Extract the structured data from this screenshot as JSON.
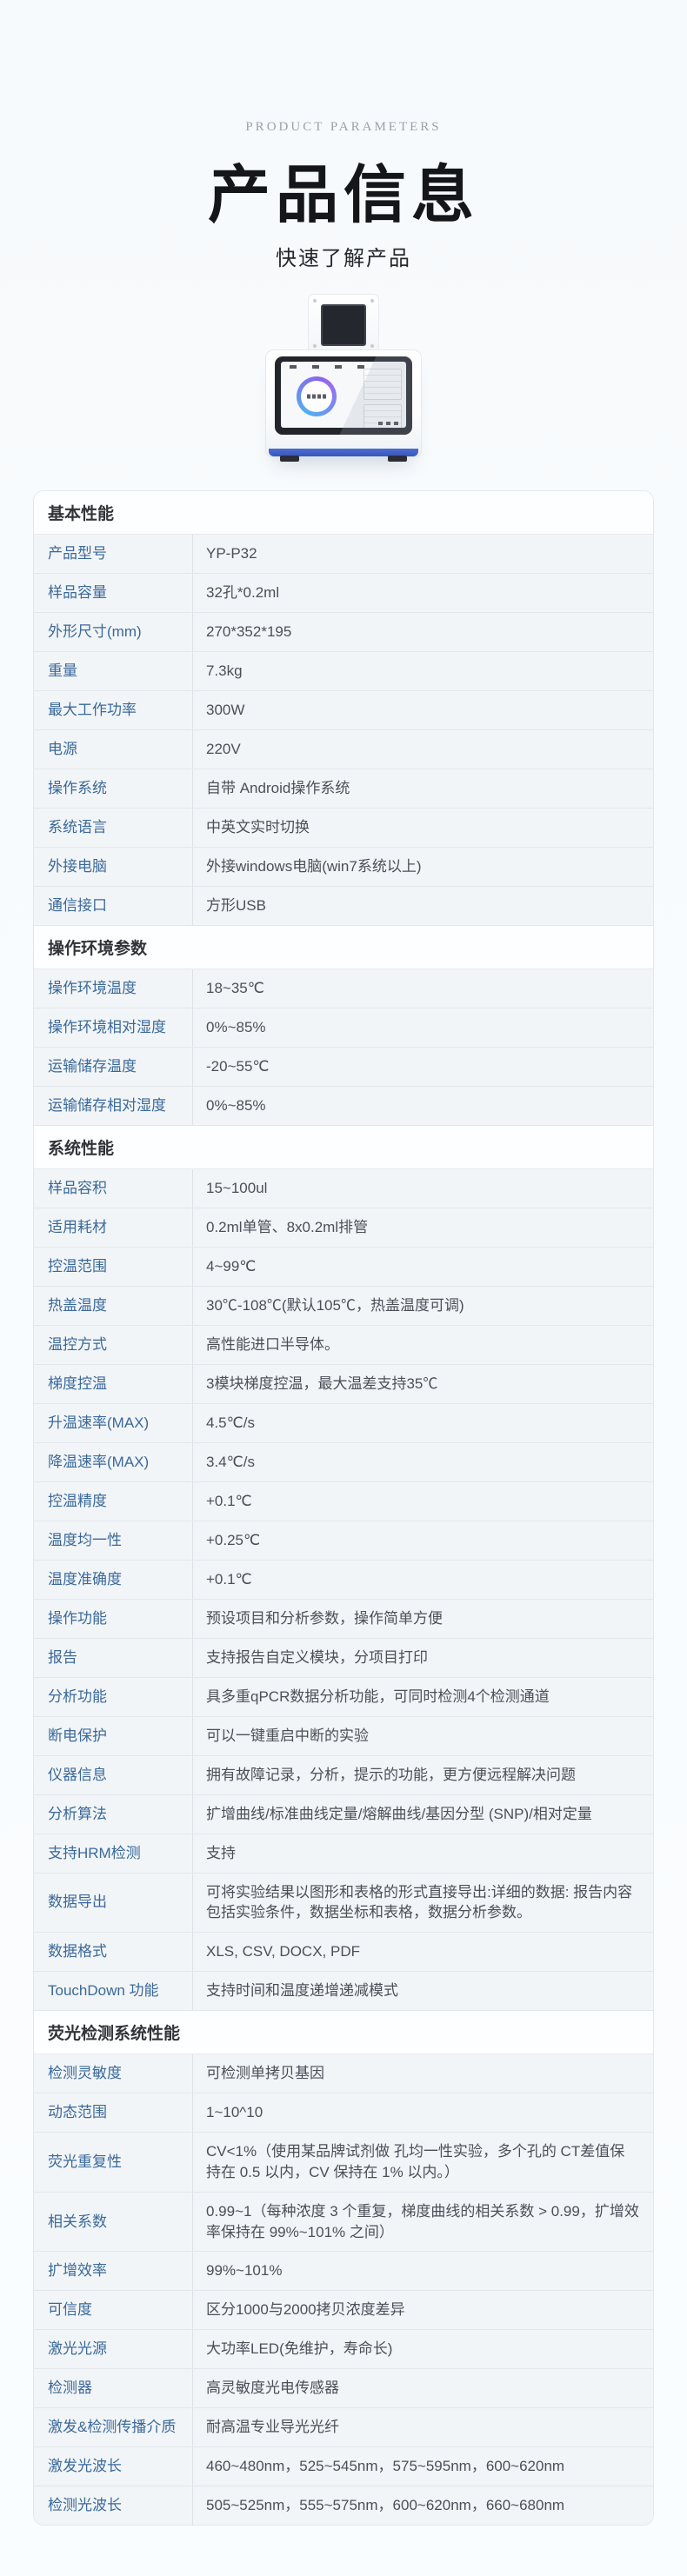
{
  "header": {
    "eyebrow": "PRODUCT PARAMETERS",
    "title": "产品信息",
    "subtitle": "快速了解产品"
  },
  "colors": {
    "label_blue": "#3a699b",
    "value_gray": "#4b5058",
    "base_strip_blue": "#3856bd",
    "ring_purple": "#8a63ea",
    "ring_blue": "#4fb0f0",
    "page_background": "#f9fcfe"
  },
  "table": {
    "sections": [
      {
        "title": "基本性能",
        "rows": [
          {
            "label": "产品型号",
            "value": "YP-P32"
          },
          {
            "label": "样品容量",
            "value": "32孔*0.2ml"
          },
          {
            "label": "外形尺寸(mm)",
            "value": "270*352*195"
          },
          {
            "label": "重量",
            "value": "7.3kg"
          },
          {
            "label": "最大工作功率",
            "value": "300W"
          },
          {
            "label": "电源",
            "value": "220V"
          },
          {
            "label": "操作系统",
            "value": "自带 Android操作系统"
          },
          {
            "label": "系统语言",
            "value": "中英文实时切换"
          },
          {
            "label": "外接电脑",
            "value": "外接windows电脑(win7系统以上)"
          },
          {
            "label": "通信接口",
            "value": "方形USB"
          }
        ]
      },
      {
        "title": "操作环境参数",
        "rows": [
          {
            "label": "操作环境温度",
            "value": "18~35℃"
          },
          {
            "label": "操作环境相对湿度",
            "value": "0%~85%"
          },
          {
            "label": "运输储存温度",
            "value": "-20~55℃"
          },
          {
            "label": "运输储存相对湿度",
            "value": "0%~85%"
          }
        ]
      },
      {
        "title": "系统性能",
        "rows": [
          {
            "label": "样品容积",
            "value": "15~100ul"
          },
          {
            "label": "适用耗材",
            "value": "0.2ml单管、8x0.2ml排管"
          },
          {
            "label": "控温范围",
            "value": "4~99℃"
          },
          {
            "label": "热盖温度",
            "value": "30℃-108℃(默认105℃，热盖温度可调)"
          },
          {
            "label": "温控方式",
            "value": "高性能进口半导体。"
          },
          {
            "label": "梯度控温",
            "value": "3模块梯度控温，最大温差支持35℃"
          },
          {
            "label": "升温速率(MAX)",
            "value": "4.5℃/s"
          },
          {
            "label": "降温速率(MAX)",
            "value": "3.4℃/s"
          },
          {
            "label": "控温精度",
            "value": "+0.1℃"
          },
          {
            "label": "温度均一性",
            "value": "+0.25℃"
          },
          {
            "label": "温度准确度",
            "value": "+0.1℃"
          },
          {
            "label": "操作功能",
            "value": "预设项目和分析参数，操作简单方便"
          },
          {
            "label": "报告",
            "value": "支持报告自定义模块，分项目打印"
          },
          {
            "label": "分析功能",
            "value": "具多重qPCR数据分析功能，可同时检测4个检测通道"
          },
          {
            "label": "断电保护",
            "value": "可以一键重启中断的实验"
          },
          {
            "label": "仪器信息",
            "value": "拥有故障记录，分析，提示的功能，更方便远程解决问题"
          },
          {
            "label": "分析算法",
            "value": "扩增曲线/标准曲线定量/熔解曲线/基因分型 (SNP)/相对定量"
          },
          {
            "label": "支持HRM检测",
            "value": "支持"
          },
          {
            "label": "数据导出",
            "value": "可将实验结果以图形和表格的形式直接导出:详细的数据: 报告内容包括实验条件，数据坐标和表格，数据分析参数。"
          },
          {
            "label": "数据格式",
            "value": "XLS, CSV, DOCX, PDF"
          },
          {
            "label": "TouchDown 功能",
            "value": "支持时间和温度递增递减模式"
          }
        ]
      },
      {
        "title": "荧光检测系统性能",
        "rows": [
          {
            "label": "检测灵敏度",
            "value": "可检测单拷贝基因"
          },
          {
            "label": "动态范围",
            "value": "1~10^10"
          },
          {
            "label": "荧光重复性",
            "value": "CV<1%（使用某品牌试剂做 孔均一性实验，多个孔的 CT差值保持在 0.5 以内，CV 保持在 1% 以内。）"
          },
          {
            "label": "相关系数",
            "value": "0.99~1（每种浓度 3 个重复，梯度曲线的相关系数 > 0.99，扩增效率保持在 99%~101% 之间）"
          },
          {
            "label": "扩增效率",
            "value": "99%~101%"
          },
          {
            "label": "可信度",
            "value": "区分1000与2000拷贝浓度差异"
          },
          {
            "label": "激光光源",
            "value": "大功率LED(免维护，寿命长)"
          },
          {
            "label": "检测器",
            "value": "高灵敏度光电传感器"
          },
          {
            "label": "激发&检测传播介质",
            "value": "耐高温专业导光光纤"
          },
          {
            "label": "激发光波长",
            "value": "460~480nm，525~545nm，575~595nm，600~620nm"
          },
          {
            "label": "检测光波长",
            "value": "505~525nm，555~575nm，600~620nm，660~680nm"
          }
        ]
      }
    ]
  }
}
